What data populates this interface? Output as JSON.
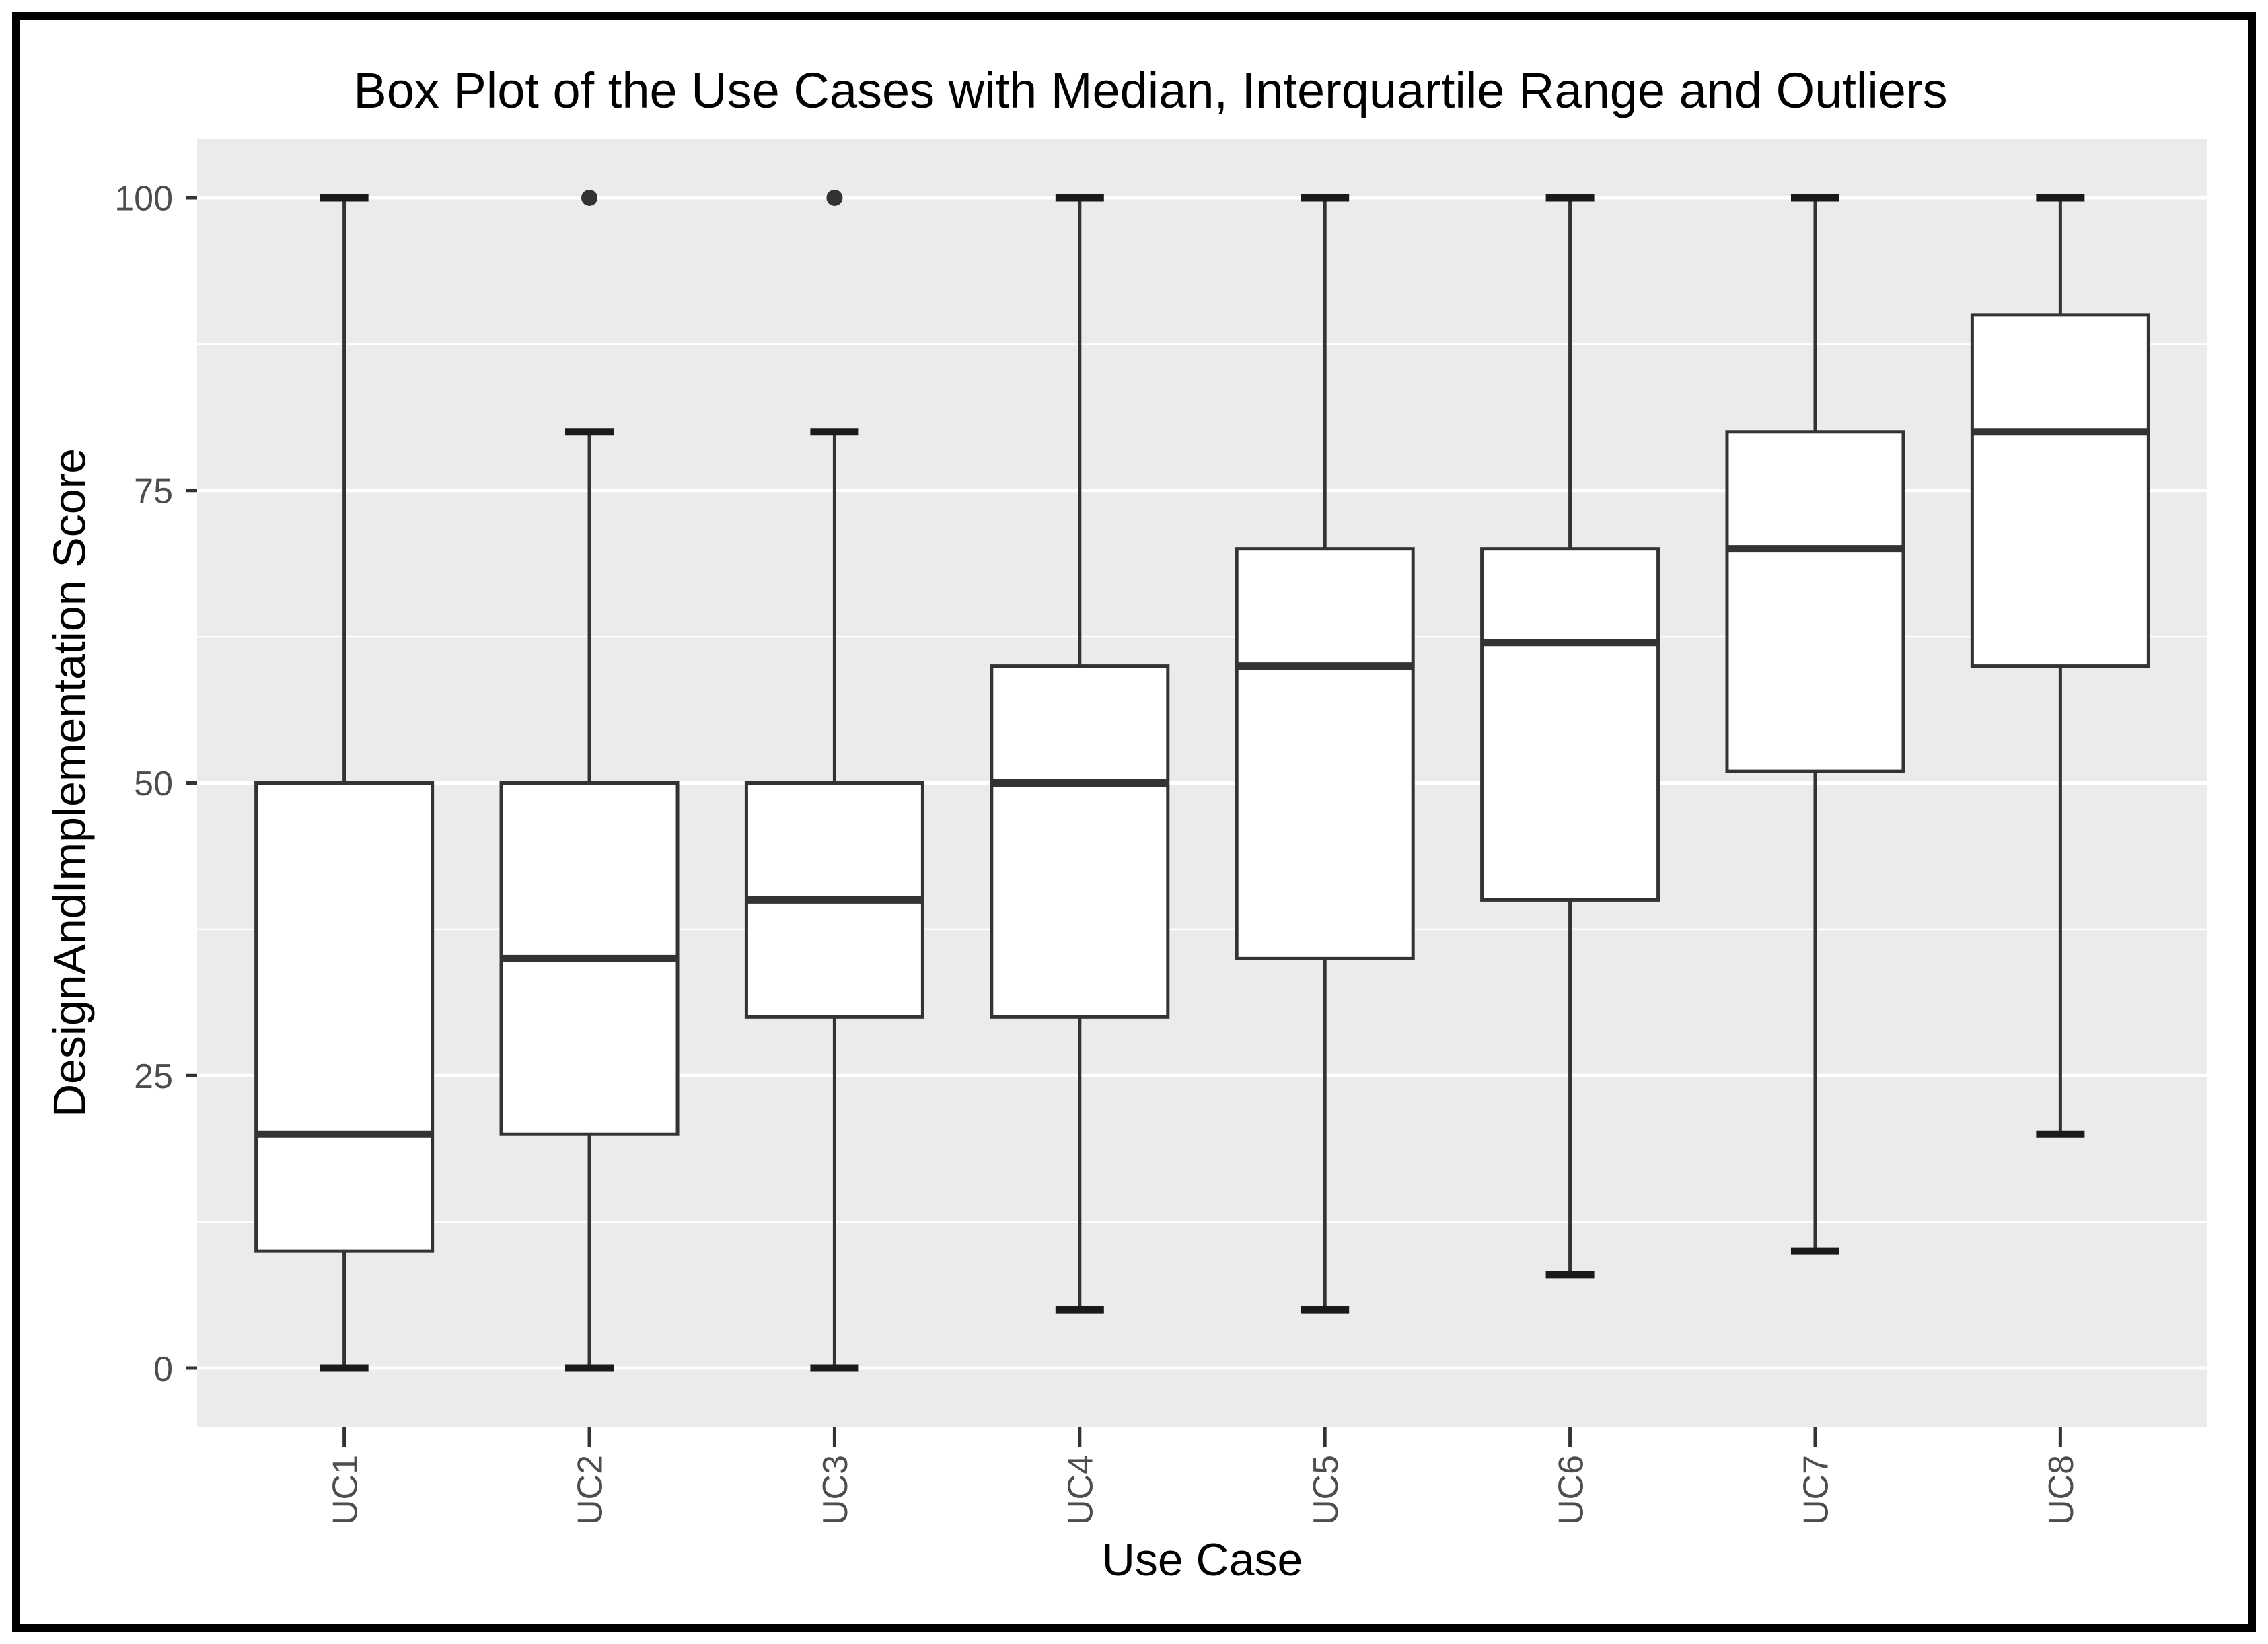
{
  "chart_data": {
    "type": "boxplot",
    "title": "Box Plot of the Use Cases with Median, Interquartile Range and Outliers",
    "xlabel": "Use Case",
    "ylabel": "DesignAndImplementation Score",
    "categories": [
      "UC1",
      "UC2",
      "UC3",
      "UC4",
      "UC5",
      "UC6",
      "UC7",
      "UC8"
    ],
    "boxes": [
      {
        "category": "UC1",
        "whisker_low": 0,
        "q1": 10,
        "median": 20,
        "q3": 50,
        "whisker_high": 100,
        "outliers": []
      },
      {
        "category": "UC2",
        "whisker_low": 0,
        "q1": 20,
        "median": 35,
        "q3": 50,
        "whisker_high": 80,
        "outliers": [
          100
        ]
      },
      {
        "category": "UC3",
        "whisker_low": 0,
        "q1": 30,
        "median": 40,
        "q3": 50,
        "whisker_high": 80,
        "outliers": [
          100
        ]
      },
      {
        "category": "UC4",
        "whisker_low": 5,
        "q1": 30,
        "median": 50,
        "q3": 60,
        "whisker_high": 100,
        "outliers": []
      },
      {
        "category": "UC5",
        "whisker_low": 5,
        "q1": 35,
        "median": 60,
        "q3": 70,
        "whisker_high": 100,
        "outliers": []
      },
      {
        "category": "UC6",
        "whisker_low": 8,
        "q1": 40,
        "median": 62,
        "q3": 70,
        "whisker_high": 100,
        "outliers": []
      },
      {
        "category": "UC7",
        "whisker_low": 10,
        "q1": 51,
        "median": 70,
        "q3": 80,
        "whisker_high": 100,
        "outliers": []
      },
      {
        "category": "UC8",
        "whisker_low": 20,
        "q1": 60,
        "median": 80,
        "q3": 90,
        "whisker_high": 100,
        "outliers": []
      }
    ],
    "ylim": [
      0,
      100
    ],
    "y_major_ticks": [
      0,
      25,
      50,
      75,
      100
    ],
    "y_minor_gridlines": [
      12.5,
      37.5,
      62.5,
      87.5
    ],
    "grid": true,
    "legend": false,
    "x_tick_rotation_degrees": 90
  },
  "colors": {
    "panel_background": "#EBEBEB",
    "gridline": "#FFFFFF",
    "box_stroke": "#333333",
    "box_fill": "#FFFFFF",
    "median_stroke": "#333333",
    "whisker_stroke": "#333333",
    "whisker_cap": "#1A1A1A",
    "outlier": "#333333",
    "tick_mark": "#333333",
    "tick_label": "#4D4D4D",
    "axis_title": "#000000",
    "plot_title": "#000000",
    "frame_border": "#000000"
  }
}
